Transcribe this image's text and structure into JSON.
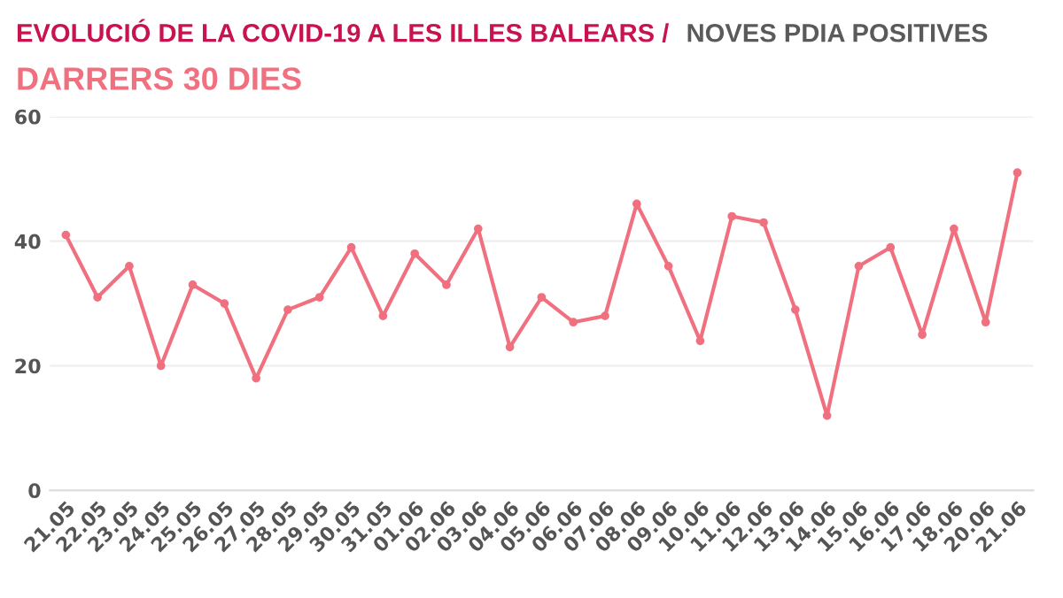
{
  "chart_data": {
    "type": "line",
    "title": "EVOLUCIÓ DE LA COVID-19 A LES ILLES BALEARS / NOVES PDIA POSITIVES",
    "subtitle": "DARRERS 30 DIES",
    "categories": [
      "21.05",
      "22.05",
      "23.05",
      "24.05",
      "25.05",
      "26.05",
      "27.05",
      "28.05",
      "29.05",
      "30.05",
      "31.05",
      "01.06",
      "02.06",
      "03.06",
      "04.06",
      "05.06",
      "06.06",
      "07.06",
      "08.06",
      "09.06",
      "10.06",
      "11.06",
      "12.06",
      "13.06",
      "14.06",
      "15.06",
      "16.06",
      "17.06",
      "18.06",
      "20.06",
      "21.06"
    ],
    "series": [
      {
        "color": "#f0707f",
        "values": [
          41,
          31,
          36,
          20,
          33,
          30,
          18,
          29,
          31,
          39,
          28,
          38,
          33,
          42,
          23,
          31,
          27,
          28,
          46,
          36,
          24,
          44,
          43,
          29,
          12,
          36,
          39,
          25,
          42,
          27,
          51
        ]
      }
    ],
    "ylim": [
      0,
      60
    ],
    "yticks": [
      0,
      20,
      40,
      60
    ],
    "grid": "y",
    "marker": "circle",
    "line_style": "solid",
    "legend": false
  }
}
